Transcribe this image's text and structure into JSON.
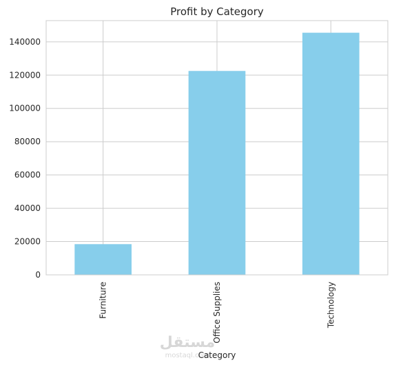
{
  "chart_data": {
    "type": "bar",
    "title": "Profit by Category",
    "xlabel": "Category",
    "ylabel": "",
    "categories": [
      "Furniture",
      "Office Supplies",
      "Technology"
    ],
    "values": [
      18451,
      122491,
      145455
    ],
    "ylim": [
      0,
      152728
    ],
    "yticks": [
      0,
      20000,
      40000,
      60000,
      80000,
      100000,
      120000,
      140000
    ],
    "bar_color": "#87ceeb",
    "grid": true,
    "legend": "none"
  },
  "watermark": {
    "glyphs": "مستقل",
    "text": "mostaql.com"
  }
}
